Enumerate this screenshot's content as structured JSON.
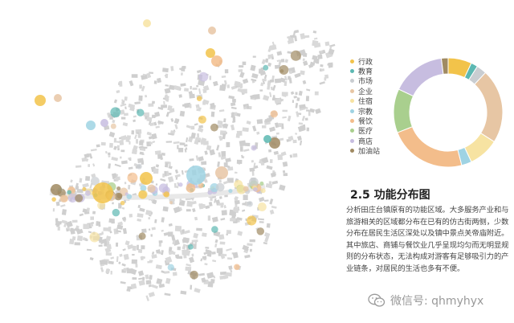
{
  "section": {
    "title": "2.5 功能分布图",
    "body": "分析田庄台镇原有的功能区域。大多服务产业和与旅游相关的区域都分布在已有的仿古街两侧，少数分布在居民生活区深处以及镇中景点关帝庙附近。其中旅店、商铺与餐饮业几乎呈现均匀而无明显规则的分布状态，无法构成对游客有足够吸引力的产业链条，对居民的生活也多有不便。"
  },
  "legend": [
    {
      "label": "行政",
      "color": "#f2c34a"
    },
    {
      "label": "教育",
      "color": "#5cb8b2"
    },
    {
      "label": "市场",
      "color": "#c9cdd1"
    },
    {
      "label": "企业",
      "color": "#e7c6a4"
    },
    {
      "label": "住宿",
      "color": "#f7e3a2"
    },
    {
      "label": "宗教",
      "color": "#9fd3e3"
    },
    {
      "label": "餐饮",
      "color": "#f3bd8b"
    },
    {
      "label": "医疗",
      "color": "#a9cf8e"
    },
    {
      "label": "商店",
      "color": "#c7bde0"
    },
    {
      "label": "加油站",
      "color": "#a08a62"
    }
  ],
  "chart_data": {
    "type": "pie",
    "style": "donut",
    "categories": [
      "行政",
      "教育",
      "市场",
      "企业",
      "住宿",
      "宗教",
      "餐饮",
      "医疗",
      "商店",
      "加油站"
    ],
    "values": [
      7,
      2,
      3,
      22,
      9,
      3,
      23,
      13,
      16,
      2
    ],
    "colors": [
      "#f2c34a",
      "#5cb8b2",
      "#c9cdd1",
      "#e7c6a4",
      "#f7e3a2",
      "#9fd3e3",
      "#f3bd8b",
      "#a9cf8e",
      "#c7bde0",
      "#a08a62"
    ]
  },
  "watermark": {
    "text": "微信号: qhmyhyx",
    "icon": "wechat-icon"
  }
}
